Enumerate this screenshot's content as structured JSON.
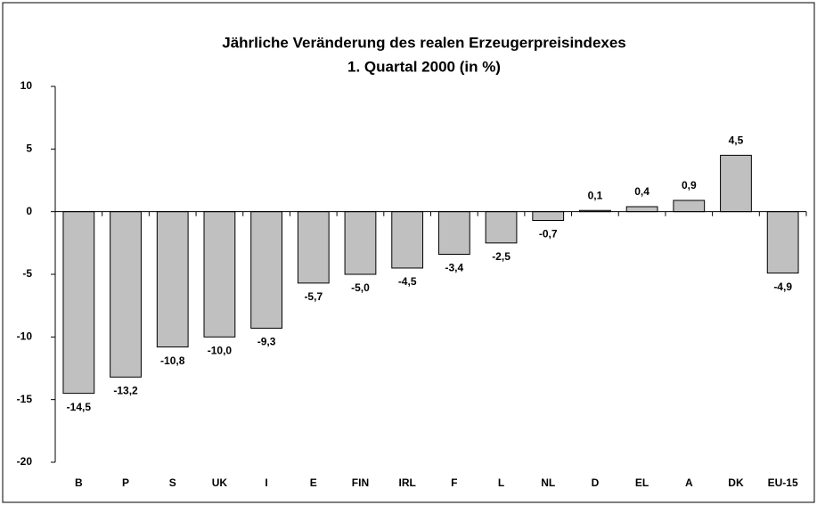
{
  "chart_data": {
    "type": "bar",
    "title": "Jährliche Veränderung des realen Erzeugerpreisindexes",
    "subtitle": "1. Quartal 2000 (in %)",
    "categories": [
      "B",
      "P",
      "S",
      "UK",
      "I",
      "E",
      "FIN",
      "IRL",
      "F",
      "L",
      "NL",
      "D",
      "EL",
      "A",
      "DK",
      "EU-15"
    ],
    "values": [
      -14.5,
      -13.2,
      -10.8,
      -10.0,
      -9.3,
      -5.7,
      -5.0,
      -4.5,
      -3.4,
      -2.5,
      -0.7,
      0.1,
      0.4,
      0.9,
      4.5,
      -4.9
    ],
    "value_labels": [
      "-14,5",
      "-13,2",
      "-10,8",
      "-10,0",
      "-9,3",
      "-5,7",
      "-5,0",
      "-4,5",
      "-3,4",
      "-2,5",
      "-0,7",
      "0,1",
      "0,4",
      "0,9",
      "4,5",
      "-4,9"
    ],
    "color": "#c0c0c0",
    "ylim": [
      -20,
      10
    ],
    "yticks": [
      -20,
      -15,
      -10,
      -5,
      0,
      5,
      10
    ],
    "grid": false
  }
}
